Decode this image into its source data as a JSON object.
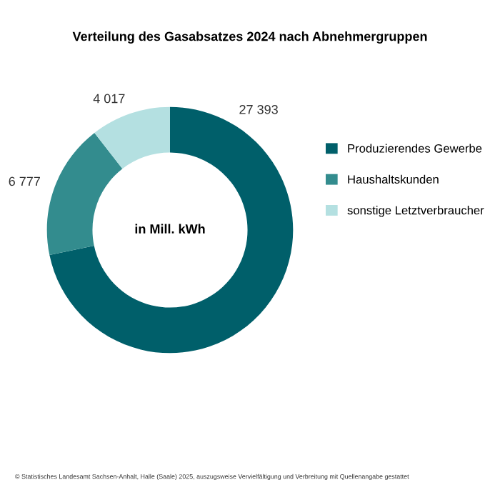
{
  "chart_data": {
    "type": "donut",
    "title": "Verteilung des Gasabsatzes 2024 nach Abnehmergruppen",
    "categories": [
      "Produzierendes Gewerbe",
      "Haushaltskunden",
      "sonstige Letztverbraucher"
    ],
    "values": [
      27393,
      6777,
      4017
    ],
    "value_labels": [
      "27 393",
      "6 777",
      "4 017"
    ],
    "colors": [
      "#005f6a",
      "#338c8e",
      "#b4e0e1"
    ],
    "legend": "right",
    "annotations": [
      "in Mill. kWh",
      "© Statistisches Landesamt Sachsen-Anhalt, Halle (Saale) 2025, auszugsweise Vervielfältigung und Verbreitung mit Quellenangabe gestattet"
    ]
  }
}
